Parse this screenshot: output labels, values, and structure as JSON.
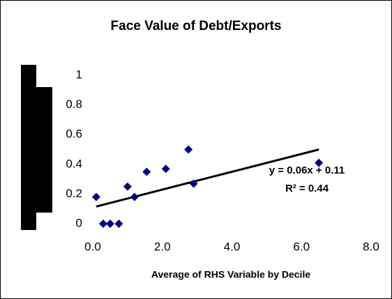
{
  "chart_data": {
    "type": "scatter",
    "title": "Face Value of Debt/Exports",
    "x_label": "Average of RHS Variable by Decile",
    "x": [
      0.1,
      0.3,
      0.5,
      0.75,
      1.0,
      1.2,
      1.55,
      2.1,
      2.75,
      2.9,
      6.5
    ],
    "values": [
      0.18,
      0,
      0,
      0,
      0.25,
      0.18,
      0.35,
      0.37,
      0.5,
      0.27,
      0.41
    ],
    "color": "#000080",
    "xlim": [
      0,
      8
    ],
    "xticks": [
      {
        "value": 0,
        "label": "0.0"
      },
      {
        "value": 2,
        "label": "2.0"
      },
      {
        "value": 4,
        "label": "4.0"
      },
      {
        "value": 6,
        "label": "6.0"
      },
      {
        "value": 8,
        "label": "8.0"
      }
    ],
    "ylim": [
      0,
      1
    ],
    "yticks": [
      0,
      0.2,
      0.4,
      0.6,
      0.8,
      1
    ],
    "grid": false,
    "trendline": {
      "slope": 0.06,
      "intercept": 0.11,
      "label": "y = 0.06x + 0.11",
      "r2_label": "R² = 0.44"
    }
  }
}
